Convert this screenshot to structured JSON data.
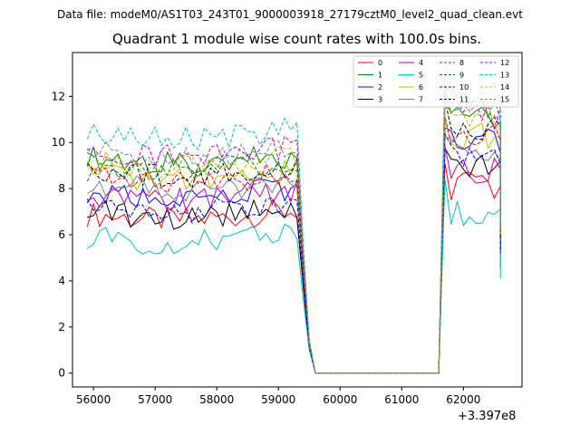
{
  "chart_data": {
    "type": "line",
    "suptitle": "Data file: modeM0/AS1T03_243T01_9000003918_27179cztM0_level2_quad_clean.evt",
    "title": "Quadrant 1 module wise count rates with 100.0s bins.",
    "xlabel": "",
    "ylabel": "",
    "x_offset_label": "+3.397e8",
    "xlim": [
      55660,
      62950
    ],
    "ylim": [
      -0.6,
      13.9
    ],
    "xticks": [
      56000,
      57000,
      58000,
      59000,
      60000,
      61000,
      62000
    ],
    "xtick_labels": [
      "56000",
      "57000",
      "58000",
      "59000",
      "60000",
      "61000",
      "62000"
    ],
    "yticks": [
      0,
      2,
      4,
      6,
      8,
      10,
      12
    ],
    "ytick_labels": [
      "0",
      "2",
      "4",
      "6",
      "8",
      "10",
      "12"
    ],
    "grid": false,
    "legend_position": "top-right",
    "segments": [
      {
        "x_start": 55900,
        "x_end": 59300,
        "step": 100
      },
      {
        "x_start": 59400,
        "x_end": 59600,
        "step": 100
      },
      {
        "x_start": 59600,
        "x_end": 61600,
        "step": 100
      },
      {
        "x_start": 61700,
        "x_end": 62600,
        "step": 100
      }
    ],
    "series": [
      {
        "name": "0",
        "color": "#ff0000",
        "dash": "solid",
        "base": 6.9,
        "high": 8.1,
        "end": 4.6
      },
      {
        "name": "1",
        "color": "#008000",
        "dash": "solid",
        "base": 9.3,
        "high": 11.0,
        "end": 5.7
      },
      {
        "name": "2",
        "color": "#0000ff",
        "dash": "solid",
        "base": 7.9,
        "high": 10.0,
        "end": 5.5
      },
      {
        "name": "3",
        "color": "#000000",
        "dash": "solid",
        "base": 7.0,
        "high": 9.0,
        "end": 5.3
      },
      {
        "name": "4",
        "color": "#bf00bf",
        "dash": "solid",
        "base": 7.8,
        "high": 8.8,
        "end": 5.4
      },
      {
        "name": "5",
        "color": "#00bfbf",
        "dash": "solid",
        "base": 5.9,
        "high": 7.0,
        "end": 4.1
      },
      {
        "name": "6",
        "color": "#bfbf00",
        "dash": "solid",
        "base": 8.6,
        "high": 10.3,
        "end": 5.8
      },
      {
        "name": "7",
        "color": "#808080",
        "dash": "solid",
        "base": 8.2,
        "high": 9.6,
        "end": 5.6
      },
      {
        "name": "8",
        "color": "#ff0000",
        "dash": "dashed",
        "base": 8.5,
        "high": 10.4,
        "end": 5.9
      },
      {
        "name": "9",
        "color": "#008000",
        "dash": "dashed",
        "base": 9.1,
        "high": 11.6,
        "end": 6.0
      },
      {
        "name": "10",
        "color": "#0000ff",
        "dash": "dashed",
        "base": 7.3,
        "high": 9.4,
        "end": 5.2
      },
      {
        "name": "11",
        "color": "#000000",
        "dash": "dashed",
        "base": 8.8,
        "high": 10.6,
        "end": 5.9
      },
      {
        "name": "12",
        "color": "#bf00bf",
        "dash": "dashed",
        "base": 9.7,
        "high": 11.2,
        "end": 6.1
      },
      {
        "name": "13",
        "color": "#00bfbf",
        "dash": "dashed",
        "base": 10.4,
        "high": 12.1,
        "end": 6.3
      },
      {
        "name": "14",
        "color": "#bfbf00",
        "dash": "dashed",
        "base": 9.2,
        "high": 11.1,
        "end": 6.0
      },
      {
        "name": "15",
        "color": "#808080",
        "dash": "dashed",
        "base": 9.6,
        "high": 11.5,
        "end": 6.1
      }
    ]
  }
}
